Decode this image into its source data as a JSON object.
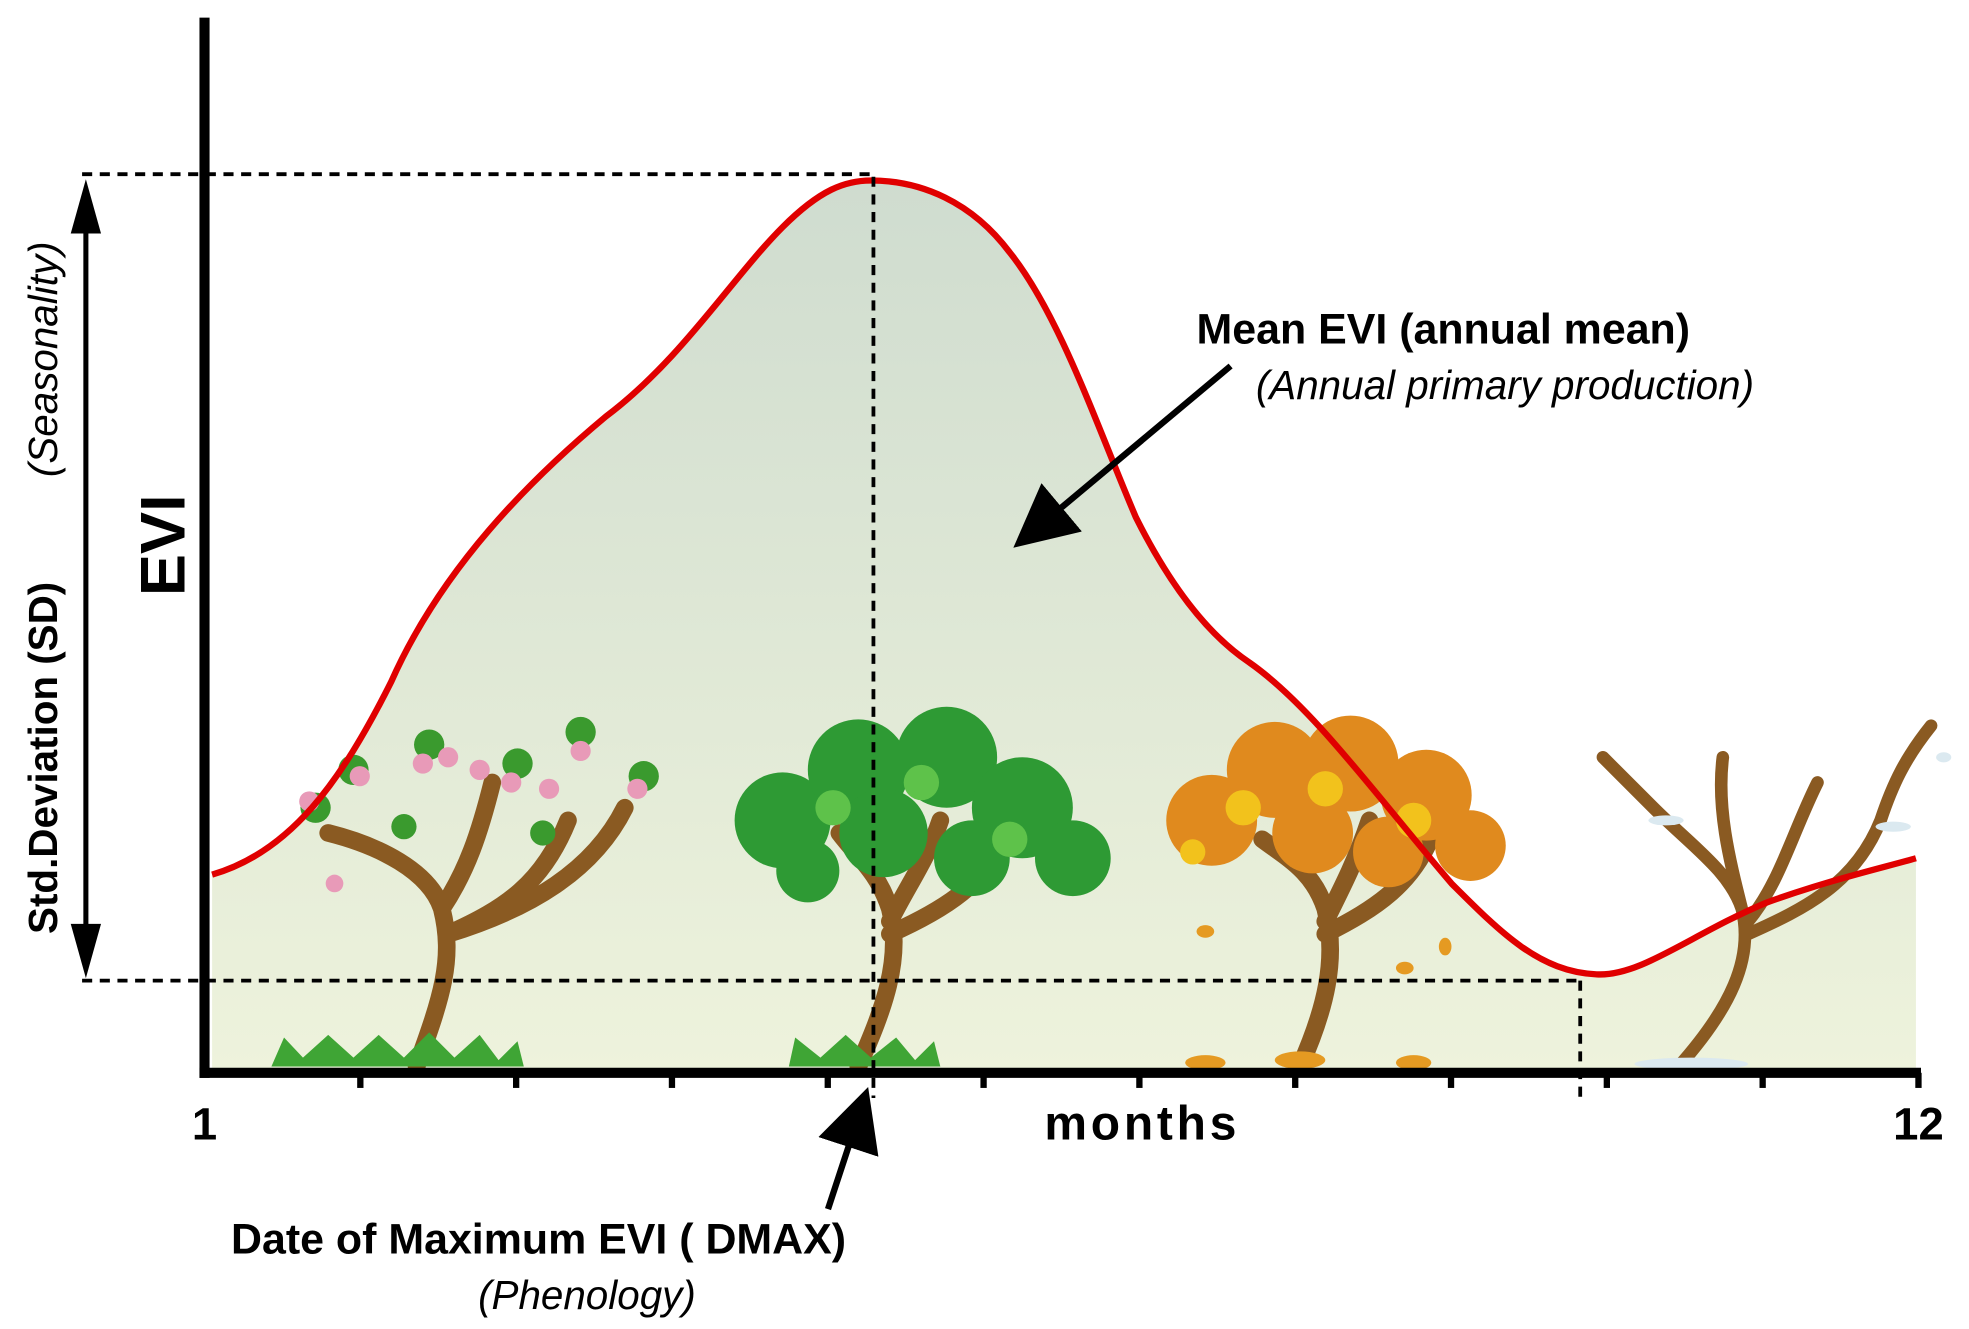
{
  "axes": {
    "y_label": "EVI",
    "x_label": "months",
    "x_start": "1",
    "x_end": "12"
  },
  "annotations": {
    "sd_label": "Std.Deviation (SD)",
    "sd_sub": "(Seasonality)",
    "mean_label": "Mean EVI (annual mean)",
    "mean_sub": "(Annual primary production)",
    "dmax_label": "Date of Maximum EVI ( DMAX)",
    "dmax_sub": "(Phenology)"
  },
  "colors": {
    "curve": "#e00000",
    "fill_top": "#cfdccf",
    "fill_bottom": "#eef3dc",
    "axis": "#000000"
  },
  "illustrations": [
    "spring-blossom-tree",
    "summer-green-tree",
    "autumn-tree",
    "winter-bare-tree"
  ]
}
